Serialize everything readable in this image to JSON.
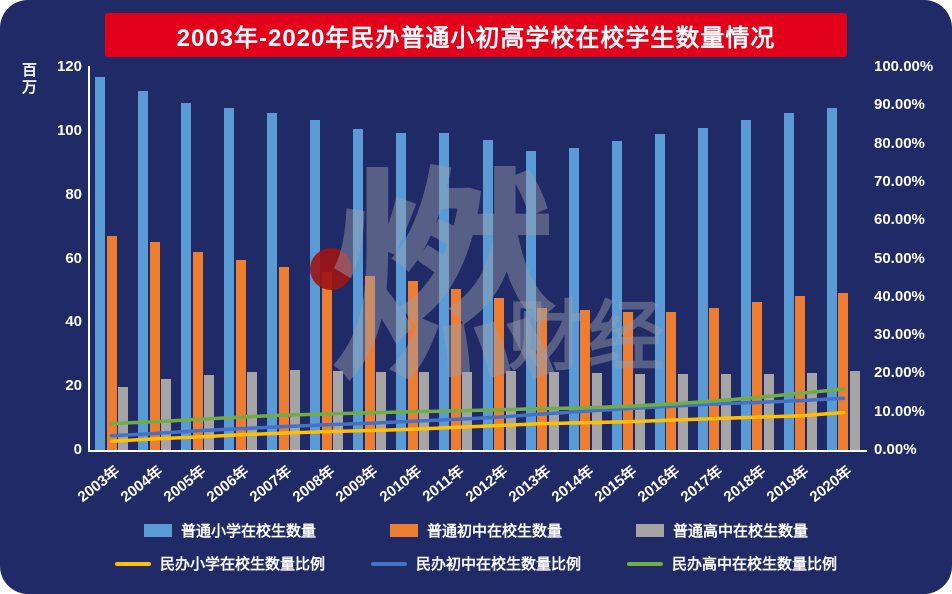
{
  "title": "2003年-2020年民办普通小初高学校在校学生数量情况",
  "watermark": {
    "char_main": "燃",
    "char_sub": "财经"
  },
  "colors": {
    "background": "#1F2A66",
    "banner": "#E2001A",
    "text": "#FFFFFF",
    "primary_bar": "#5B9BD5",
    "junior_bar": "#ED7D31",
    "senior_bar": "#A5A5A5",
    "primary_line": "#FFC000",
    "junior_line": "#4472C4",
    "senior_line": "#70AD47"
  },
  "chart_data": {
    "type": "bar",
    "subtype": "bar+line combo, dual axis",
    "title": "2003年-2020年民办普通小初高学校在校学生数量情况",
    "grid": false,
    "legend_position": "bottom",
    "categories": [
      "2003年",
      "2004年",
      "2005年",
      "2006年",
      "2007年",
      "2008年",
      "2009年",
      "2010年",
      "2011年",
      "2012年",
      "2013年",
      "2014年",
      "2015年",
      "2016年",
      "2017年",
      "2018年",
      "2019年",
      "2020年"
    ],
    "left_axis": {
      "label": "百万",
      "min": 0,
      "max": 120,
      "ticks": [
        "0",
        "20",
        "40",
        "60",
        "80",
        "100",
        "120"
      ]
    },
    "right_axis": {
      "label": "",
      "min": 0,
      "max": 100,
      "ticks": [
        "0.00%",
        "10.00%",
        "20.00%",
        "30.00%",
        "40.00%",
        "50.00%",
        "60.00%",
        "70.00%",
        "80.00%",
        "90.00%",
        "100.00%"
      ]
    },
    "bar_series": [
      {
        "name": "普通小学在校生数量",
        "color": "#5B9BD5",
        "values": [
          116.9,
          112.5,
          108.6,
          107.1,
          105.6,
          103.3,
          100.7,
          99.4,
          99.3,
          97.0,
          93.6,
          94.5,
          96.9,
          99.1,
          100.9,
          103.4,
          105.6,
          107.3
        ]
      },
      {
        "name": "普通初中在校生数量",
        "color": "#ED7D31",
        "values": [
          66.9,
          65.3,
          62.1,
          59.6,
          57.4,
          55.9,
          54.4,
          52.8,
          50.6,
          47.6,
          44.4,
          43.8,
          43.1,
          43.3,
          44.4,
          46.5,
          48.3,
          49.1
        ]
      },
      {
        "name": "普通高中在校生数量",
        "color": "#A5A5A5",
        "values": [
          19.6,
          22.2,
          23.4,
          24.5,
          25.2,
          24.8,
          24.3,
          24.3,
          24.5,
          24.7,
          24.4,
          24.0,
          23.7,
          23.7,
          23.7,
          23.8,
          24.1,
          24.9
        ]
      }
    ],
    "line_series": [
      {
        "name": "民办小学在校生数量比例",
        "color": "#FFC000",
        "axis": "right",
        "values": [
          2.3,
          2.9,
          3.4,
          4.0,
          4.4,
          4.8,
          5.1,
          5.4,
          5.9,
          6.4,
          6.9,
          7.1,
          7.4,
          7.8,
          8.2,
          8.6,
          8.9,
          9.8
        ]
      },
      {
        "name": "民办初中在校生数量比例",
        "color": "#4472C4",
        "axis": "right",
        "values": [
          3.7,
          4.3,
          5.0,
          5.6,
          6.1,
          6.6,
          7.0,
          7.5,
          8.0,
          8.6,
          9.4,
          10.1,
          10.8,
          11.4,
          12.0,
          12.4,
          12.9,
          13.5
        ]
      },
      {
        "name": "民办高中在校生数量比例",
        "color": "#70AD47",
        "axis": "right",
        "values": [
          6.9,
          7.4,
          8.0,
          8.6,
          9.1,
          9.4,
          9.7,
          10.0,
          10.2,
          10.5,
          10.8,
          11.0,
          11.4,
          12.0,
          12.8,
          13.7,
          14.8,
          15.9
        ]
      }
    ]
  }
}
